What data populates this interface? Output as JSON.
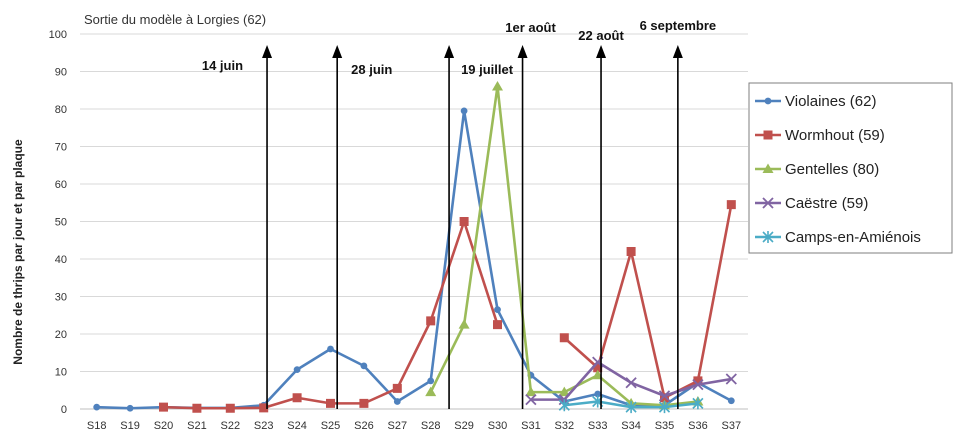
{
  "chart_data": {
    "type": "line",
    "title": "Sortie du modèle à Lorgies (62)",
    "ylabel": "Nombre de thrips par jour et par plaque",
    "xlabel": "",
    "ylim": [
      0,
      100
    ],
    "yticks": [
      0,
      10,
      20,
      30,
      40,
      50,
      60,
      70,
      80,
      90,
      100
    ],
    "categories": [
      "S18",
      "S19",
      "S20",
      "S21",
      "S22",
      "S23",
      "S24",
      "S25",
      "S26",
      "S27",
      "S28",
      "S29",
      "S30",
      "S31",
      "S32",
      "S33",
      "S34",
      "S35",
      "S36",
      "S37"
    ],
    "legend_position": "right",
    "series": [
      {
        "name": "Violaines (62)",
        "color": "#4f81bd",
        "marker": "circle",
        "values": [
          0.5,
          0.2,
          0.5,
          0.3,
          0.3,
          1,
          10.5,
          16,
          11.5,
          2,
          7.5,
          79.5,
          26.5,
          9,
          2,
          4,
          1,
          1,
          7,
          2.2
        ]
      },
      {
        "name": "Wormhout (59)",
        "color": "#c0504d",
        "marker": "square",
        "values": [
          null,
          null,
          0.5,
          0.2,
          0.2,
          0.3,
          3,
          1.5,
          1.5,
          5.5,
          23.5,
          50,
          22.5,
          null,
          19,
          11,
          42,
          3,
          7.5,
          54.5
        ]
      },
      {
        "name": "Gentelles (80)",
        "color": "#9bbb59",
        "marker": "triangle",
        "values": [
          null,
          null,
          null,
          null,
          null,
          null,
          null,
          null,
          null,
          null,
          4.5,
          22.5,
          86,
          4.5,
          4.5,
          9,
          1.5,
          1,
          2,
          null
        ]
      },
      {
        "name": "Caëstre (59)",
        "color": "#8064a2",
        "marker": "x",
        "values": [
          null,
          null,
          null,
          null,
          null,
          null,
          null,
          null,
          null,
          null,
          null,
          null,
          null,
          2.5,
          2.5,
          12.5,
          7,
          3.5,
          6.5,
          8
        ]
      },
      {
        "name": "Camps-en-Amiénois",
        "color": "#4bacc6",
        "marker": "star",
        "values": [
          null,
          null,
          null,
          null,
          null,
          null,
          null,
          null,
          null,
          null,
          null,
          null,
          null,
          null,
          1,
          2,
          0.5,
          0.5,
          1.5,
          null
        ]
      }
    ],
    "annotations": [
      {
        "label": "14 juin",
        "x": 5.6
      },
      {
        "label": "28 juin",
        "x": 7.7
      },
      {
        "label": "19 juillet",
        "x": 11.05
      },
      {
        "label": "1er août",
        "x": 13.25
      },
      {
        "label": "22 août",
        "x": 15.6
      },
      {
        "label": "6 septembre",
        "x": 17.9
      }
    ]
  }
}
